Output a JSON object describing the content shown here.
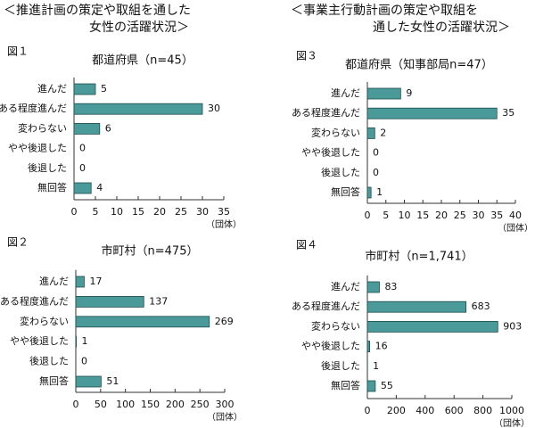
{
  "headings": [
    [
      "＜推進計画の策定や取組を通した",
      "女性の活躍状況＞"
    ],
    [
      "＜事業主行動計画の策定や取組を",
      "通した女性の活躍状況＞"
    ]
  ],
  "chart_data": [
    {
      "type": "bar",
      "orientation": "horizontal",
      "figure_label": "図１",
      "title": "都道府県（n=45）",
      "categories": [
        "進んだ",
        "ある程度進んだ",
        "変わらない",
        "やや後退した",
        "後退した",
        "無回答"
      ],
      "values": [
        5,
        30,
        6,
        0,
        0,
        4
      ],
      "color": "#4a9a9a",
      "xlim": [
        0,
        35
      ],
      "xticks": [
        0,
        5,
        10,
        15,
        20,
        25,
        30,
        35
      ],
      "unit_label": "（団体）"
    },
    {
      "type": "bar",
      "orientation": "horizontal",
      "figure_label": "図２",
      "title": "市町村（n=475）",
      "categories": [
        "進んだ",
        "ある程度進んだ",
        "変わらない",
        "やや後退した",
        "後退した",
        "無回答"
      ],
      "values": [
        17,
        137,
        269,
        1,
        0,
        51
      ],
      "color": "#4a9a9a",
      "xlim": [
        0,
        300
      ],
      "xticks": [
        0,
        50,
        100,
        150,
        200,
        250,
        300
      ],
      "unit_label": "（団体）"
    },
    {
      "type": "bar",
      "orientation": "horizontal",
      "figure_label": "図３",
      "title": "都道府県（知事部局n=47）",
      "categories": [
        "進んだ",
        "ある程度進んだ",
        "変わらない",
        "やや後退した",
        "後退した",
        "無回答"
      ],
      "values": [
        9,
        35,
        2,
        0,
        0,
        1
      ],
      "color": "#4a9a9a",
      "xlim": [
        0,
        40
      ],
      "xticks": [
        0,
        5,
        10,
        15,
        20,
        25,
        30,
        35,
        40
      ],
      "unit_label": "（団体）"
    },
    {
      "type": "bar",
      "orientation": "horizontal",
      "figure_label": "図４",
      "title": "市町村（n=1,741）",
      "categories": [
        "進んだ",
        "ある程度進んだ",
        "変わらない",
        "やや後退した",
        "後退した",
        "無回答"
      ],
      "values": [
        83,
        683,
        903,
        16,
        1,
        55
      ],
      "color": "#4a9a9a",
      "xlim": [
        0,
        1000
      ],
      "xticks": [
        0,
        200,
        400,
        600,
        800,
        1000
      ],
      "unit_label": "（団体）"
    }
  ]
}
